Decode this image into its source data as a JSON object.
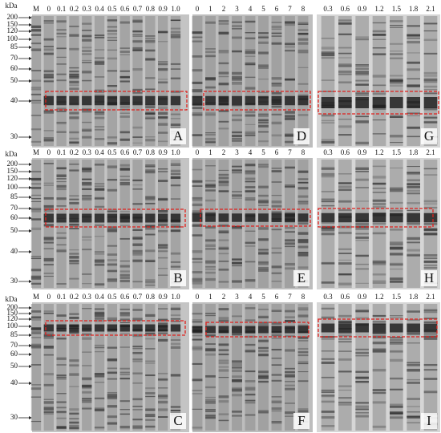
{
  "rows": [
    {
      "markers": {
        "unit": "kDa",
        "ticks": [
          "200",
          "150",
          "120",
          "100",
          "85",
          "70",
          "60",
          "50",
          "40",
          "30"
        ]
      },
      "panels": [
        {
          "letter": "A",
          "lanes": [
            "M",
            "0",
            "0.1",
            "0.2",
            "0.3",
            "0.4",
            "0.5",
            "0.6",
            "0.7",
            "0.8",
            "0.9",
            "1.0"
          ]
        },
        {
          "letter": "D",
          "lanes": [
            "0",
            "1",
            "2",
            "3",
            "4",
            "5",
            "6",
            "7",
            "8"
          ]
        },
        {
          "letter": "G",
          "lanes": [
            "0.3",
            "0.6",
            "0.9",
            "1.2",
            "1.5",
            "1.8",
            "2.1"
          ]
        }
      ]
    },
    {
      "markers": {
        "unit": "kDa",
        "ticks": [
          "200",
          "150",
          "120",
          "100",
          "85",
          "70",
          "60",
          "50",
          "40",
          "30"
        ]
      },
      "panels": [
        {
          "letter": "B",
          "lanes": [
            "M",
            "0",
            "0.1",
            "0.2",
            "0.3",
            "0.4",
            "0.5",
            "0.6",
            "0.7",
            "0.8",
            "0.9",
            "1.0"
          ]
        },
        {
          "letter": "E",
          "lanes": [
            "0",
            "1",
            "2",
            "3",
            "4",
            "5",
            "6",
            "7",
            "8"
          ]
        },
        {
          "letter": "H",
          "lanes": [
            "0.3",
            "0.6",
            "0.9",
            "1.2",
            "1.5",
            "1.8",
            "2.1"
          ]
        }
      ]
    },
    {
      "markers": {
        "unit": "kDa",
        "ticks": [
          "200",
          "150",
          "120",
          "100",
          "85",
          "70",
          "60",
          "50",
          "40",
          "30"
        ]
      },
      "panels": [
        {
          "letter": "C",
          "lanes": [
            "M",
            "0",
            "0.1",
            "0.2",
            "0.3",
            "0.4",
            "0.5",
            "0.6",
            "0.7",
            "0.8",
            "0.9",
            "1.0"
          ]
        },
        {
          "letter": "F",
          "lanes": [
            "0",
            "1",
            "2",
            "3",
            "4",
            "5",
            "6",
            "7",
            "8"
          ]
        },
        {
          "letter": "I",
          "lanes": [
            "0.3",
            "0.6",
            "0.9",
            "1.2",
            "1.5",
            "1.8",
            "2.1"
          ]
        }
      ]
    }
  ]
}
